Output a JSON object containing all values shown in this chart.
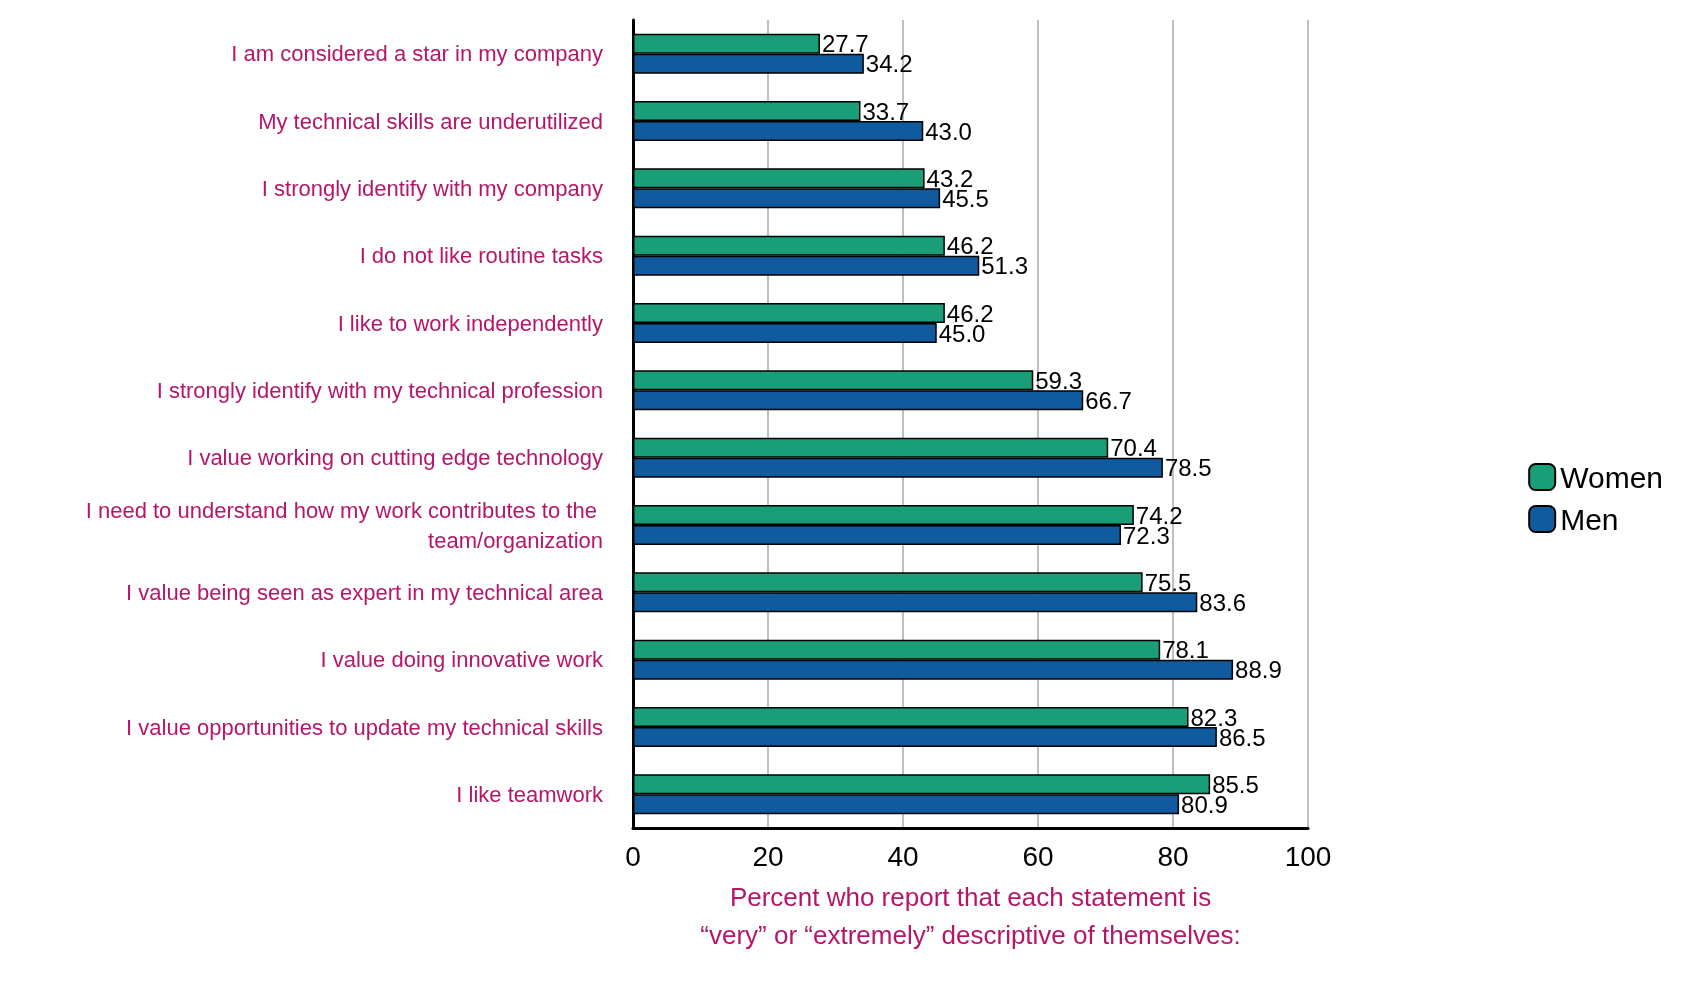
{
  "chart_data": {
    "type": "bar",
    "orientation": "horizontal",
    "xlabel": "Percent who report that each statement is\n“very” or “extremely” descriptive of themselves:",
    "categories": [
      "I am considered a star in my company",
      "My technical skills are underutilized",
      "I strongly identify with my company",
      "I do not like routine tasks",
      "I like to work independently",
      "I strongly identify with my technical profession",
      "I value working on cutting edge technology",
      "I need to understand how my work contributes to the team/organization",
      "I value being seen as expert in my technical area",
      "I value doing innovative work",
      "I value opportunities to update my technical skills",
      "I like teamwork"
    ],
    "series": [
      {
        "name": "Women",
        "color": "#1a9e78",
        "values": [
          27.7,
          33.7,
          43.2,
          46.2,
          46.2,
          59.3,
          70.4,
          74.2,
          75.5,
          78.1,
          82.3,
          85.5
        ],
        "value_labels": [
          "27.7",
          "33.7",
          "43.2",
          "46.2",
          "46.2",
          "59.3",
          "70.4",
          "74.2",
          "75.5",
          "78.1",
          "82.3",
          "85.5"
        ]
      },
      {
        "name": "Men",
        "color": "#0f5b9e",
        "values": [
          34.2,
          43.0,
          45.5,
          51.3,
          45.0,
          66.7,
          78.5,
          72.3,
          83.6,
          88.9,
          86.5,
          80.9
        ],
        "value_labels": [
          "34.2",
          "43.0",
          "45.5",
          "51.3",
          "45.0",
          "66.7",
          "78.5",
          "72.3",
          "83.6",
          "88.9",
          "86.5",
          "80.9"
        ]
      }
    ],
    "xlim": [
      0,
      100
    ],
    "xticks": [
      0,
      20,
      40,
      60,
      80,
      100
    ],
    "grid": "x",
    "legend": "right"
  }
}
